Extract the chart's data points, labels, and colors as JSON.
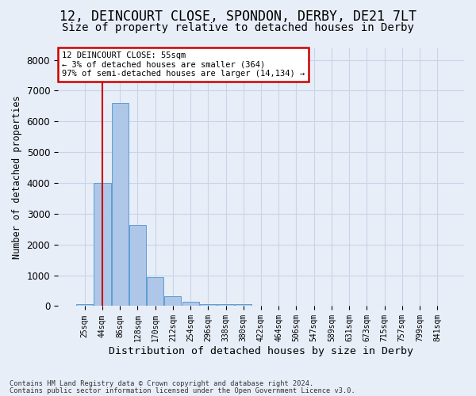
{
  "title1": "12, DEINCOURT CLOSE, SPONDON, DERBY, DE21 7LT",
  "title2": "Size of property relative to detached houses in Derby",
  "xlabel": "Distribution of detached houses by size in Derby",
  "ylabel": "Number of detached properties",
  "bar_values": [
    75,
    4000,
    6600,
    2625,
    950,
    320,
    140,
    75,
    75,
    60,
    0,
    0,
    0,
    0,
    0,
    0,
    0,
    0,
    0,
    0,
    0
  ],
  "bar_labels": [
    "25sqm",
    "44sqm",
    "86sqm",
    "128sqm",
    "170sqm",
    "212sqm",
    "254sqm",
    "296sqm",
    "338sqm",
    "380sqm",
    "422sqm",
    "464sqm",
    "506sqm",
    "547sqm",
    "589sqm",
    "631sqm",
    "673sqm",
    "715sqm",
    "757sqm",
    "799sqm",
    "841sqm"
  ],
  "bar_color": "#aec6e8",
  "bar_edge_color": "#5a9fd4",
  "vline_x": 1,
  "vline_color": "#cc0000",
  "annotation_title": "12 DEINCOURT CLOSE: 55sqm",
  "annotation_line1": "← 3% of detached houses are smaller (364)",
  "annotation_line2": "97% of semi-detached houses are larger (14,134) →",
  "annotation_box_color": "#cc0000",
  "annotation_bg": "#ffffff",
  "ylim": [
    0,
    8400
  ],
  "yticks": [
    0,
    1000,
    2000,
    3000,
    4000,
    5000,
    6000,
    7000,
    8000
  ],
  "grid_color": "#c8d4e8",
  "bg_color": "#e8eef8",
  "footer1": "Contains HM Land Registry data © Crown copyright and database right 2024.",
  "footer2": "Contains public sector information licensed under the Open Government Licence v3.0.",
  "title1_fontsize": 12,
  "title2_fontsize": 10,
  "xlabel_fontsize": 9.5,
  "ylabel_fontsize": 8.5
}
